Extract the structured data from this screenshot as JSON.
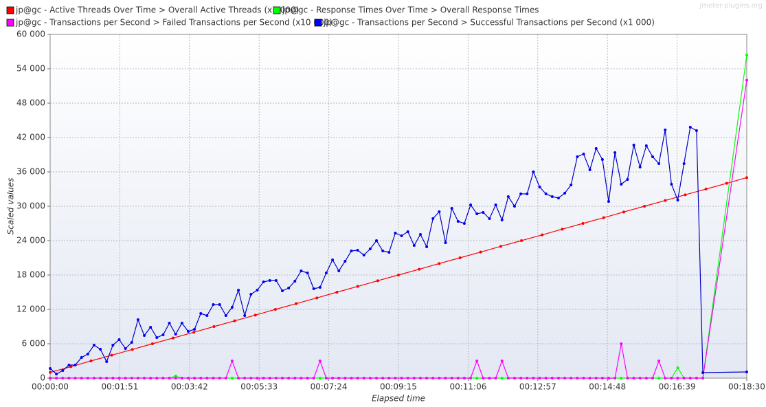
{
  "chart_data": {
    "type": "line",
    "watermark": "jmeter-plugins.org",
    "xlabel": "Elapsed time",
    "ylabel": "Scaled values",
    "xlim": [
      0,
      1110
    ],
    "ylim": [
      0,
      60000
    ],
    "grid": true,
    "xticks": [
      {
        "value": 0,
        "label": "00:00:00"
      },
      {
        "value": 111,
        "label": "00:01:51"
      },
      {
        "value": 222,
        "label": "00:03:42"
      },
      {
        "value": 333,
        "label": "00:05:33"
      },
      {
        "value": 444,
        "label": "00:07:24"
      },
      {
        "value": 555,
        "label": "00:09:15"
      },
      {
        "value": 666,
        "label": "00:11:06"
      },
      {
        "value": 777,
        "label": "00:12:57"
      },
      {
        "value": 888,
        "label": "00:14:48"
      },
      {
        "value": 999,
        "label": "00:16:39"
      },
      {
        "value": 1110,
        "label": "00:18:30"
      }
    ],
    "yticks": [
      0,
      {
        "value": 6000,
        "label": "6 000"
      },
      {
        "value": 12000,
        "label": "12 000"
      },
      {
        "value": 18000,
        "label": "18 000"
      },
      {
        "value": 24000,
        "label": "24 000"
      },
      {
        "value": 30000,
        "label": "30 000"
      },
      {
        "value": 36000,
        "label": "36 000"
      },
      {
        "value": 42000,
        "label": "42 000"
      },
      {
        "value": 48000,
        "label": "48 000"
      },
      {
        "value": 54000,
        "label": "54 000"
      },
      {
        "value": 60000,
        "label": "60 000"
      }
    ],
    "x": [
      0,
      10,
      20,
      30,
      40,
      50,
      60,
      70,
      80,
      90,
      100,
      110,
      120,
      130,
      140,
      150,
      160,
      170,
      180,
      190,
      200,
      210,
      220,
      230,
      240,
      250,
      260,
      270,
      280,
      290,
      300,
      310,
      320,
      330,
      340,
      350,
      360,
      370,
      380,
      390,
      400,
      410,
      420,
      430,
      440,
      450,
      460,
      470,
      480,
      490,
      500,
      510,
      520,
      530,
      540,
      550,
      560,
      570,
      580,
      590,
      600,
      610,
      620,
      630,
      640,
      650,
      660,
      670,
      680,
      690,
      700,
      710,
      720,
      730,
      740,
      750,
      760,
      770,
      780,
      790,
      800,
      810,
      820,
      830,
      840,
      850,
      860,
      870,
      880,
      890,
      900,
      910,
      920,
      930,
      940,
      950,
      960,
      970,
      980,
      990,
      1000,
      1010,
      1020,
      1030,
      1040,
      1110
    ],
    "series": [
      {
        "name": "jp@gc - Active Threads Over Time > Overall Active Threads (x1 000)",
        "color": "#ff0000",
        "line_color": "#ff0000",
        "x": [
          0,
          33,
          65,
          98,
          131,
          163,
          196,
          229,
          261,
          294,
          327,
          359,
          392,
          425,
          457,
          490,
          522,
          555,
          588,
          620,
          653,
          686,
          718,
          751,
          784,
          816,
          849,
          882,
          914,
          947,
          980,
          1012,
          1045,
          1078,
          1110
        ],
        "values": [
          1000,
          2000,
          3000,
          4000,
          5000,
          6000,
          7000,
          8000,
          9000,
          10000,
          11000,
          12000,
          13000,
          14000,
          15000,
          16000,
          17000,
          18000,
          19000,
          20000,
          21000,
          22000,
          23000,
          24000,
          25000,
          26000,
          27000,
          28000,
          29000,
          30000,
          31000,
          32000,
          33000,
          34000,
          35000
        ]
      },
      {
        "name": "jp@gc - Response Times Over Time > Overall Response Times",
        "color": "#00ff00",
        "line_color": "#00ff00",
        "values": [
          0,
          0,
          0,
          0,
          0,
          0,
          0,
          0,
          0,
          0,
          0,
          0,
          0,
          0,
          0,
          0,
          0,
          0,
          0,
          0,
          360,
          0,
          0,
          0,
          0,
          0,
          0,
          0,
          0,
          0,
          0,
          0,
          0,
          0,
          0,
          0,
          0,
          0,
          0,
          0,
          0,
          0,
          0,
          0,
          0,
          0,
          0,
          0,
          0,
          0,
          0,
          0,
          0,
          0,
          0,
          0,
          0,
          0,
          0,
          0,
          0,
          0,
          0,
          0,
          0,
          0,
          0,
          0,
          0,
          0,
          0,
          0,
          0,
          0,
          0,
          0,
          0,
          0,
          0,
          0,
          0,
          0,
          0,
          0,
          0,
          0,
          0,
          0,
          0,
          0,
          0,
          0,
          0,
          0,
          0,
          0,
          0,
          0,
          0,
          0,
          1800,
          0,
          0,
          0,
          0,
          56400
        ]
      },
      {
        "name": "jp@gc - Transactions per Second > Failed Transactions per Second (x10 000)",
        "color": "#ff00ff",
        "line_color": "#ff00ff",
        "values": [
          0,
          0,
          0,
          0,
          0,
          0,
          0,
          0,
          0,
          0,
          0,
          0,
          0,
          0,
          0,
          0,
          0,
          0,
          0,
          0,
          0,
          0,
          0,
          0,
          0,
          0,
          0,
          0,
          0,
          3000,
          0,
          0,
          0,
          0,
          0,
          0,
          0,
          0,
          0,
          0,
          0,
          0,
          0,
          3000,
          0,
          0,
          0,
          0,
          0,
          0,
          0,
          0,
          0,
          0,
          0,
          0,
          0,
          0,
          0,
          0,
          0,
          0,
          0,
          0,
          0,
          0,
          0,
          0,
          3000,
          0,
          0,
          0,
          3000,
          0,
          0,
          0,
          0,
          0,
          0,
          0,
          0,
          0,
          0,
          0,
          0,
          0,
          0,
          0,
          0,
          0,
          0,
          6000,
          0,
          0,
          0,
          0,
          0,
          3000,
          0,
          0,
          0,
          0,
          0,
          0,
          0,
          52000
        ]
      },
      {
        "name": "jp@gc - Transactions per Second > Successful Transactions per Second (x1 000)",
        "color": "#0000ff",
        "line_color": "#0000c0",
        "values": [
          1680,
          720,
          1320,
          2280,
          2280,
          3600,
          4200,
          5760,
          5040,
          2880,
          5760,
          6720,
          5160,
          6240,
          10200,
          7440,
          8880,
          7080,
          7560,
          9600,
          7680,
          9600,
          8160,
          8520,
          11280,
          10920,
          12840,
          12840,
          10920,
          12360,
          15360,
          10920,
          14640,
          15360,
          16800,
          17040,
          17040,
          15240,
          15720,
          16920,
          18720,
          18360,
          15600,
          15840,
          18360,
          20640,
          18720,
          20400,
          22200,
          22320,
          21480,
          22560,
          24000,
          22200,
          21960,
          25320,
          24840,
          25560,
          23160,
          25080,
          22920,
          27840,
          29040,
          23640,
          29640,
          27360,
          27000,
          30240,
          28680,
          28920,
          27840,
          30240,
          27600,
          31680,
          30000,
          32160,
          32160,
          36000,
          33360,
          32160,
          31680,
          31440,
          32280,
          33720,
          38640,
          39120,
          36360,
          40080,
          38160,
          30840,
          39360,
          33840,
          34680,
          40680,
          36840,
          40560,
          38640,
          37440,
          43320,
          33840,
          31080,
          37440,
          43800,
          43200,
          960,
          1080
        ]
      }
    ]
  }
}
